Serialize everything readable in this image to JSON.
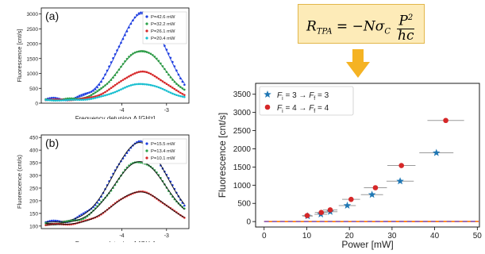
{
  "formula": {
    "lhs": "R",
    "lhs_sub": "TPA",
    "equals": "= −N",
    "sigma": "σ",
    "sigma_sub": "C",
    "numerator": "P",
    "numerator_sup": "2",
    "denominator": "hc"
  },
  "colors": {
    "arrow": "#f5b323",
    "formula_bg": "#fdebb8"
  },
  "chart_data": [
    {
      "type": "scatter",
      "panel_label": "(a)",
      "xlabel": "Frequency detuning Δ [GHz]",
      "ylabel": "Fluorescence [cnt/s]",
      "xlim": [
        -5.8,
        -2.5
      ],
      "ylim": [
        0,
        3200
      ],
      "xticks": [
        -4,
        -3
      ],
      "xtick_labels": [
        "-4",
        "-3"
      ],
      "yticks": [
        0,
        500,
        1000,
        1500,
        2000,
        2500,
        3000
      ],
      "grid": false,
      "legend_position": "top-right",
      "series": [
        {
          "name": "P=42.6 mW",
          "color": "#1f3fe0",
          "fit_color": "#1f3fe0",
          "center": -3.55,
          "sigma": 0.52,
          "peak": 3000,
          "baseline": 130,
          "x_range": [
            -5.7,
            -2.6
          ]
        },
        {
          "name": "P=32.2 mW",
          "color": "#2ca24a",
          "fit_color": "#2a8f3e",
          "center": -3.55,
          "sigma": 0.52,
          "peak": 1770,
          "baseline": 120,
          "x_range": [
            -5.7,
            -2.6
          ]
        },
        {
          "name": "P=26.1 mW",
          "color": "#d62728",
          "fit_color": "#d62728",
          "center": -3.55,
          "sigma": 0.52,
          "peak": 1050,
          "baseline": 110,
          "x_range": [
            -5.7,
            -2.6
          ]
        },
        {
          "name": "P=20.4 mW",
          "color": "#17becf",
          "fit_color": "#17becf",
          "center": -3.55,
          "sigma": 0.52,
          "peak": 650,
          "baseline": 100,
          "x_range": [
            -5.7,
            -2.6
          ]
        }
      ]
    },
    {
      "type": "scatter",
      "panel_label": "(b)",
      "xlabel": "Frequency detuning Δ [GHz]",
      "ylabel": "Fluorescence (cnt/s)",
      "xlim": [
        -5.8,
        -2.5
      ],
      "ylim": [
        90,
        460
      ],
      "xticks": [
        -4,
        -3
      ],
      "xtick_labels": [
        "-4",
        "-3"
      ],
      "yticks": [
        100,
        150,
        200,
        250,
        300,
        350,
        400,
        450
      ],
      "grid": false,
      "legend_position": "top-right",
      "series": [
        {
          "name": "P=15.5 mW",
          "color": "#1f3fe0",
          "fit_color": "#111111",
          "center": -3.6,
          "sigma": 0.58,
          "peak": 430,
          "baseline": 115,
          "x_range": [
            -5.7,
            -2.6
          ]
        },
        {
          "name": "P=13.4 mW",
          "color": "#2ca24a",
          "fit_color": "#111111",
          "center": -3.6,
          "sigma": 0.58,
          "peak": 355,
          "baseline": 110,
          "x_range": [
            -5.7,
            -2.6
          ]
        },
        {
          "name": "P=10.1 mW",
          "color": "#d62728",
          "fit_color": "#111111",
          "center": -3.6,
          "sigma": 0.58,
          "peak": 235,
          "baseline": 105,
          "x_range": [
            -5.7,
            -2.6
          ]
        }
      ]
    },
    {
      "type": "scatter",
      "xlabel": "Power [mW]",
      "ylabel": "Fluorescence [cnt/s]",
      "xlim": [
        -2,
        50.5
      ],
      "ylim": [
        -150,
        3800
      ],
      "xticks": [
        0,
        10,
        20,
        30,
        40,
        50
      ],
      "yticks": [
        0,
        500,
        1000,
        1500,
        2000,
        2500,
        3000,
        3500
      ],
      "grid": false,
      "legend_position": "top-left",
      "series": [
        {
          "name": "F_i = 3 → F_f = 3",
          "label_parts": [
            "F",
            "i",
            " = 3 → ",
            "F",
            "f",
            " = 3"
          ],
          "marker": "star",
          "color": "#1f77b4",
          "x": [
            10.2,
            13.3,
            15.5,
            19.5,
            25.3,
            31.9,
            40.4
          ],
          "y": [
            150,
            200,
            270,
            440,
            740,
            1110,
            1890
          ],
          "xerr": [
            1.2,
            1.5,
            1.7,
            2.0,
            2.6,
            3.2,
            4.0
          ],
          "fit": {
            "color": "#ff7f0e",
            "dashed": false,
            "coef": 0.00116
          }
        },
        {
          "name": "F_i = 4 → F_f = 4",
          "label_parts": [
            "F",
            "i",
            " = 4 → ",
            "F",
            "f",
            " = 4"
          ],
          "marker": "circle",
          "color": "#d62728",
          "x": [
            10.1,
            13.4,
            15.5,
            20.4,
            26.1,
            32.2,
            42.6
          ],
          "y": [
            165,
            250,
            320,
            610,
            930,
            1540,
            2780
          ],
          "xerr": [
            1.2,
            1.5,
            1.7,
            2.1,
            2.7,
            3.3,
            4.3
          ],
          "fit": {
            "color": "#9467bd",
            "dashed": true,
            "coef": 0.00152
          }
        }
      ]
    }
  ]
}
